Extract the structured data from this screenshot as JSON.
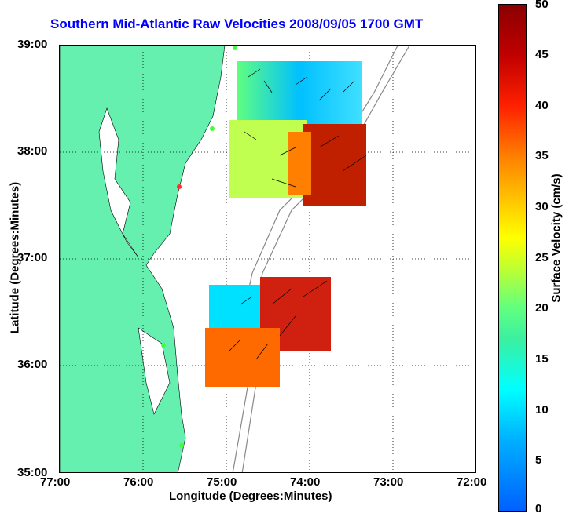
{
  "title": "Southern Mid-Atlantic Raw Velocities 2008/09/05 1700 GMT",
  "xlabel": "Longitude (Degrees:Minutes)",
  "ylabel": "Latitude (Degrees:Minutes)",
  "xticks": [
    "77:00",
    "76:00",
    "75:00",
    "74:00",
    "73:00",
    "72:00"
  ],
  "yticks": [
    "39:00",
    "38:00",
    "37:00",
    "36:00",
    "35:00"
  ],
  "colorbar": {
    "label": "Surface Velocity (cm/s)",
    "ticks": [
      "50",
      "45",
      "40",
      "35",
      "30",
      "25",
      "20",
      "15",
      "10",
      "5",
      "0"
    ]
  },
  "colors": {
    "land": "#66f0b0",
    "title": "#0000ff"
  }
}
